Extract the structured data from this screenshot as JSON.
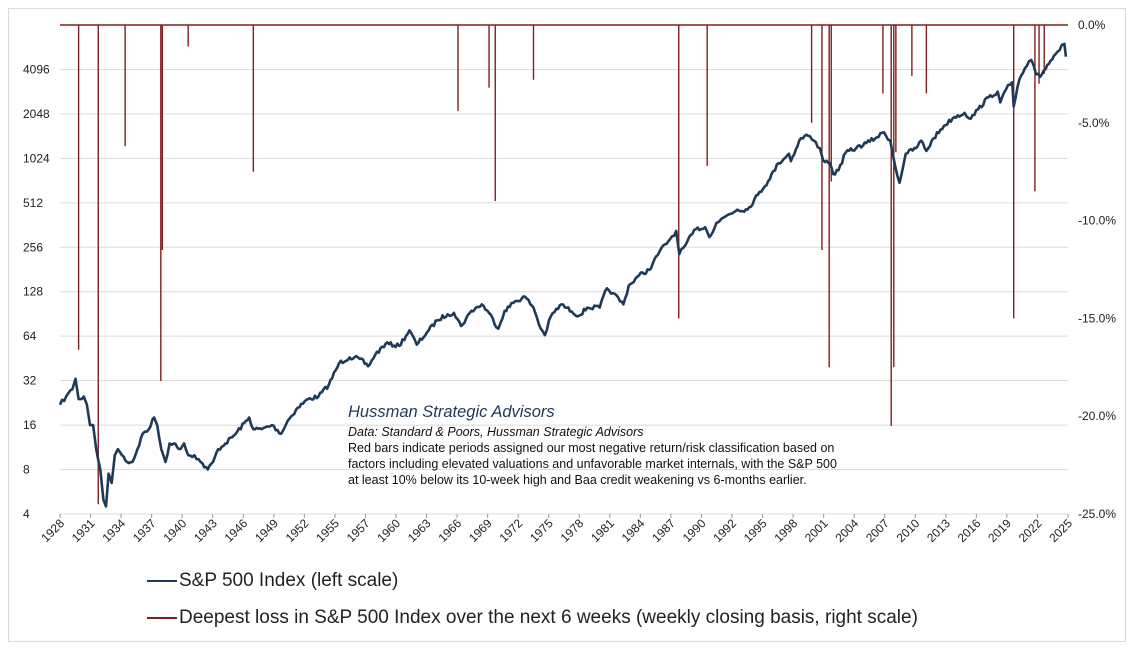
{
  "chart_data": {
    "type": "line",
    "title": "",
    "xlabel": "",
    "ylabel_left": "",
    "ylabel_right": "",
    "x_range": [
      1928,
      2025.5
    ],
    "y_left": {
      "scale": "log2",
      "range": [
        4,
        8192
      ],
      "ticks": [
        4,
        8,
        16,
        32,
        64,
        128,
        256,
        512,
        1024,
        2048,
        4096
      ],
      "tick_labels": [
        "4",
        "8",
        "16",
        "32",
        "64",
        "128",
        "256",
        "512",
        "1024",
        "2048",
        "4096"
      ]
    },
    "y_right": {
      "range": [
        -25.0,
        0.0
      ],
      "ticks": [
        0.0,
        -5.0,
        -10.0,
        -15.0,
        -20.0,
        -25.0
      ],
      "tick_labels": [
        "0.0%",
        "-5.0%",
        "-10.0%",
        "-15.0%",
        "-20.0%",
        "-25.0%"
      ]
    },
    "x_tick_labels": [
      "1928",
      "1931",
      "1934",
      "1937",
      "1940",
      "1943",
      "1946",
      "1949",
      "1952",
      "1955",
      "1957",
      "1960",
      "1963",
      "1966",
      "1969",
      "1972",
      "1975",
      "1978",
      "1981",
      "1984",
      "1987",
      "1990",
      "1992",
      "1995",
      "1998",
      "2001",
      "2004",
      "2007",
      "2010",
      "2013",
      "2016",
      "2019",
      "2022",
      "2025"
    ],
    "grid": true,
    "series": [
      {
        "name": "S&P 500 Index (left scale)",
        "axis": "left",
        "color": "#1f3a57",
        "points": [
          [
            1928.0,
            22
          ],
          [
            1928.6,
            25
          ],
          [
            1929.2,
            28
          ],
          [
            1929.5,
            33
          ],
          [
            1929.8,
            24
          ],
          [
            1930.1,
            24
          ],
          [
            1930.3,
            25
          ],
          [
            1930.6,
            22
          ],
          [
            1930.9,
            16
          ],
          [
            1931.2,
            16
          ],
          [
            1931.5,
            11
          ],
          [
            1931.9,
            8
          ],
          [
            1932.2,
            5
          ],
          [
            1932.45,
            4.5
          ],
          [
            1932.7,
            7.5
          ],
          [
            1933.0,
            6.5
          ],
          [
            1933.3,
            10
          ],
          [
            1933.6,
            11
          ],
          [
            1934.0,
            10
          ],
          [
            1934.5,
            9
          ],
          [
            1935.0,
            9
          ],
          [
            1935.5,
            11
          ],
          [
            1936.0,
            14
          ],
          [
            1936.6,
            15
          ],
          [
            1937.1,
            18
          ],
          [
            1937.4,
            16
          ],
          [
            1937.8,
            11
          ],
          [
            1938.2,
            9
          ],
          [
            1938.6,
            12
          ],
          [
            1939.0,
            12
          ],
          [
            1939.5,
            11
          ],
          [
            1940.0,
            12
          ],
          [
            1940.4,
            10
          ],
          [
            1941.0,
            10
          ],
          [
            1941.6,
            9
          ],
          [
            1942.3,
            8
          ],
          [
            1942.8,
            9
          ],
          [
            1943.3,
            11
          ],
          [
            1944.0,
            12
          ],
          [
            1945.0,
            14
          ],
          [
            1946.3,
            18
          ],
          [
            1946.7,
            15
          ],
          [
            1947.5,
            15
          ],
          [
            1948.5,
            16
          ],
          [
            1949.4,
            14
          ],
          [
            1950.0,
            17
          ],
          [
            1951.0,
            21
          ],
          [
            1952.0,
            24
          ],
          [
            1953.0,
            25
          ],
          [
            1954.0,
            30
          ],
          [
            1955.0,
            42
          ],
          [
            1956.0,
            46
          ],
          [
            1957.0,
            45
          ],
          [
            1957.8,
            40
          ],
          [
            1958.5,
            48
          ],
          [
            1959.5,
            57
          ],
          [
            1960.8,
            55
          ],
          [
            1961.8,
            70
          ],
          [
            1962.5,
            56
          ],
          [
            1963.5,
            68
          ],
          [
            1964.5,
            82
          ],
          [
            1965.5,
            90
          ],
          [
            1966.1,
            92
          ],
          [
            1966.8,
            75
          ],
          [
            1967.8,
            95
          ],
          [
            1968.8,
            105
          ],
          [
            1969.5,
            92
          ],
          [
            1970.4,
            72
          ],
          [
            1971.0,
            95
          ],
          [
            1972.0,
            110
          ],
          [
            1973.0,
            118
          ],
          [
            1973.8,
            100
          ],
          [
            1974.5,
            72
          ],
          [
            1974.9,
            65
          ],
          [
            1975.5,
            88
          ],
          [
            1976.5,
            105
          ],
          [
            1977.5,
            94
          ],
          [
            1978.2,
            88
          ],
          [
            1979.0,
            100
          ],
          [
            1980.2,
            100
          ],
          [
            1980.9,
            135
          ],
          [
            1981.5,
            125
          ],
          [
            1982.5,
            105
          ],
          [
            1983.0,
            140
          ],
          [
            1984.0,
            165
          ],
          [
            1985.0,
            180
          ],
          [
            1986.0,
            240
          ],
          [
            1987.0,
            290
          ],
          [
            1987.6,
            330
          ],
          [
            1987.9,
            230
          ],
          [
            1988.5,
            265
          ],
          [
            1989.5,
            340
          ],
          [
            1990.4,
            350
          ],
          [
            1990.8,
            300
          ],
          [
            1991.5,
            375
          ],
          [
            1992.5,
            420
          ],
          [
            1993.5,
            460
          ],
          [
            1994.5,
            460
          ],
          [
            1995.5,
            580
          ],
          [
            1996.5,
            720
          ],
          [
            1997.5,
            950
          ],
          [
            1998.5,
            1100
          ],
          [
            1998.7,
            980
          ],
          [
            1999.5,
            1350
          ],
          [
            2000.2,
            1480
          ],
          [
            2000.9,
            1350
          ],
          [
            2001.5,
            1200
          ],
          [
            2001.8,
            1000
          ],
          [
            2002.5,
            950
          ],
          [
            2002.8,
            800
          ],
          [
            2003.3,
            850
          ],
          [
            2004.0,
            1120
          ],
          [
            2005.0,
            1200
          ],
          [
            2006.0,
            1300
          ],
          [
            2007.0,
            1420
          ],
          [
            2007.7,
            1540
          ],
          [
            2008.3,
            1350
          ],
          [
            2008.8,
            900
          ],
          [
            2009.2,
            700
          ],
          [
            2009.8,
            1100
          ],
          [
            2010.8,
            1200
          ],
          [
            2011.3,
            1350
          ],
          [
            2011.8,
            1150
          ],
          [
            2012.5,
            1400
          ],
          [
            2013.5,
            1700
          ],
          [
            2014.5,
            1950
          ],
          [
            2015.5,
            2080
          ],
          [
            2016.1,
            1900
          ],
          [
            2016.8,
            2200
          ],
          [
            2017.8,
            2650
          ],
          [
            2018.7,
            2900
          ],
          [
            2018.95,
            2450
          ],
          [
            2019.5,
            3000
          ],
          [
            2020.1,
            3350
          ],
          [
            2020.25,
            2300
          ],
          [
            2020.8,
            3500
          ],
          [
            2021.5,
            4300
          ],
          [
            2021.95,
            4750
          ],
          [
            2022.4,
            3800
          ],
          [
            2022.8,
            3650
          ],
          [
            2023.5,
            4400
          ],
          [
            2024.3,
            5200
          ],
          [
            2024.9,
            6000
          ],
          [
            2025.15,
            6100
          ],
          [
            2025.3,
            5000
          ]
        ]
      },
      {
        "name": "Deepest loss in S&P 500 Index over the next 6 weeks (weekly closing basis, right scale)",
        "axis": "right",
        "color": "#7f1f1f",
        "bars": [
          [
            1929.8,
            -16.6
          ],
          [
            1931.7,
            -24.5
          ],
          [
            1934.3,
            -6.2
          ],
          [
            1937.75,
            -18.2
          ],
          [
            1937.9,
            -11.5
          ],
          [
            1940.4,
            -1.1
          ],
          [
            1946.7,
            -7.5
          ],
          [
            1966.5,
            -4.4
          ],
          [
            1969.5,
            -3.2
          ],
          [
            1970.1,
            -9.0
          ],
          [
            1973.8,
            -2.8
          ],
          [
            1987.85,
            -15.0
          ],
          [
            1990.6,
            -7.2
          ],
          [
            2000.7,
            -5.0
          ],
          [
            2001.7,
            -11.5
          ],
          [
            2002.4,
            -17.5
          ],
          [
            2002.6,
            -8.0
          ],
          [
            2007.6,
            -3.5
          ],
          [
            2008.4,
            -20.5
          ],
          [
            2008.65,
            -17.5
          ],
          [
            2008.85,
            -6.5
          ],
          [
            2010.4,
            -2.6
          ],
          [
            2011.8,
            -3.5
          ],
          [
            2020.25,
            -15.0
          ],
          [
            2022.3,
            -8.5
          ],
          [
            2022.7,
            -3.0
          ],
          [
            2023.2,
            -2.5
          ]
        ]
      }
    ],
    "annotations": {
      "title": "Hussman Strategic Advisors",
      "source": "Data: Standard & Poors, Hussman Strategic Advisors",
      "note_lines": [
        "Red bars indicate periods assigned our most negative return/risk classification based on",
        "factors including elevated valuations and unfavorable market internals, with the S&P 500",
        "at least 10% below its 10-week high and Baa credit weakening vs 6-months earlier."
      ]
    },
    "legend": {
      "position": "bottom-left",
      "entries": [
        "S&P 500 Index (left scale)",
        "Deepest loss in S&P 500 Index over the next 6 weeks (weekly closing basis, right scale)"
      ]
    }
  }
}
